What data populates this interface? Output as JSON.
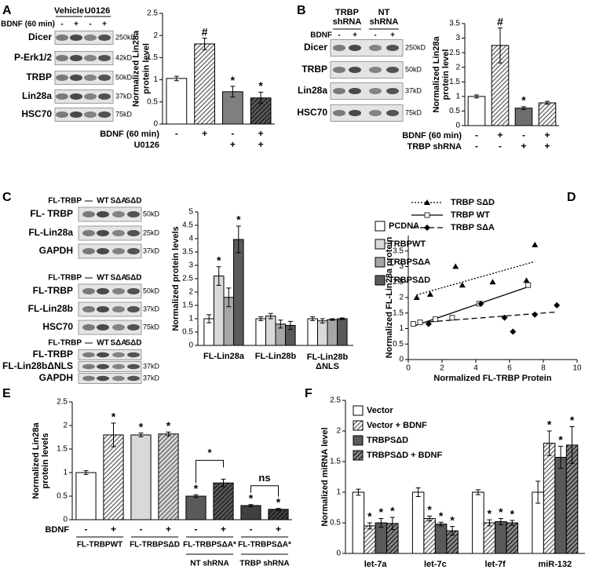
{
  "panel_labels": [
    "A",
    "B",
    "C",
    "D",
    "E",
    "F"
  ],
  "blots": [
    {
      "header_groups": [
        "Vehicle",
        "U0126"
      ],
      "sign_label": "BDNF (60 min)",
      "signs": [
        "-",
        "+",
        "-",
        "+"
      ],
      "rows": [
        {
          "label": "Dicer",
          "kd": "250kD"
        },
        {
          "label": "P-Erk1/2",
          "kd": "42kD"
        },
        {
          "label": "TRBP",
          "kd": "50kD"
        },
        {
          "label": "Lin28a",
          "kd": "37kD"
        },
        {
          "label": "HSC70",
          "kd": "75kD"
        }
      ]
    },
    {
      "header_groups": [
        "TRBP\nshRNA",
        "NT\nshRNA"
      ],
      "sign_label": "BDNF",
      "signs": [
        "-",
        "+",
        "-",
        "+"
      ],
      "rows": [
        {
          "label": "Dicer",
          "kd": "250kD"
        },
        {
          "label": "TRBP",
          "kd": "50kD"
        },
        {
          "label": "Lin28a",
          "kd": "37kD"
        },
        {
          "label": "HSC70",
          "kd": "75kD"
        }
      ]
    },
    {
      "sign_label": "FL-TRBP",
      "signs": [
        "—",
        "WT",
        "SΔA",
        "SΔD"
      ],
      "rows": [
        {
          "label": "FL- TRBP",
          "kd": "50kD"
        },
        {
          "label": "FL-Lin28a",
          "kd": "25kD"
        },
        {
          "label": "GAPDH",
          "kd": "37kD"
        }
      ]
    },
    {
      "sign_label": "FL-TRBP",
      "signs": [
        "—",
        "WT",
        "SΔA",
        "SΔD"
      ],
      "rows": [
        {
          "label": "FL-TRBP",
          "kd": "50kD"
        },
        {
          "label": "FL-Lin28b",
          "kd": "37kD"
        },
        {
          "label": "HSC70",
          "kd": "75kD"
        }
      ]
    },
    {
      "sign_label": "FL-TRBP",
      "signs": [
        "—",
        "WT",
        "SΔA",
        "SΔD"
      ],
      "rows": [
        {
          "label": "FL-TRBP"
        },
        {
          "label": "FL-Lin28bΔNLS",
          "kd": "37kD"
        },
        {
          "label": "GAPDH",
          "kd": "37kD"
        }
      ]
    }
  ],
  "chart_data": [
    {
      "type": "bar",
      "ylabel": "Normalized Lin28a\nprotein level",
      "values": [
        1.03,
        1.81,
        0.73,
        0.59
      ],
      "errors": [
        0.05,
        0.13,
        0.12,
        0.13
      ],
      "annotations": [
        null,
        "#",
        "*",
        "*"
      ],
      "colors": [
        "#ffffff",
        "#ffffff",
        "#7f7f7f",
        "#5a5a5a"
      ],
      "hatch": [
        false,
        true,
        false,
        true
      ],
      "conditions": [
        {
          "label": "BDNF (60 min)",
          "values": [
            "-",
            "+",
            "-",
            "+"
          ]
        },
        {
          "label": "U0126",
          "values": [
            null,
            null,
            "+",
            "+"
          ]
        }
      ],
      "ylim": [
        0,
        2.5
      ],
      "yticks": [
        0,
        0.5,
        1,
        1.5,
        2,
        2.5
      ]
    },
    {
      "type": "bar",
      "ylabel": "Normalized Lin28a\nprotein level",
      "values": [
        1.0,
        2.75,
        0.6,
        0.78
      ],
      "errors": [
        0.05,
        0.6,
        0.05,
        0.05
      ],
      "annotations": [
        null,
        "#",
        "*",
        null
      ],
      "colors": [
        "#ffffff",
        "#ffffff",
        "#6e6e6e",
        "#ffffff"
      ],
      "hatch": [
        false,
        true,
        false,
        true
      ],
      "conditions": [
        {
          "label": "BDNF (60 min)",
          "values": [
            "-",
            "+",
            "-",
            "+"
          ]
        },
        {
          "label": "TRBP shRNA",
          "values": [
            "-",
            "-",
            "+",
            "+"
          ]
        }
      ],
      "ylim": [
        0,
        3.5
      ],
      "yticks": [
        0,
        0.5,
        1,
        1.5,
        2,
        2.5,
        3,
        3.5
      ]
    },
    {
      "type": "grouped_bar",
      "ylabel": "Normalized protein levels",
      "legend": "right",
      "categories": [
        "FL-Lin28a",
        "FL-Lin28b",
        "FL-Lin28b\nΔNLS"
      ],
      "series": [
        {
          "name": "PCDNA",
          "color": "#ffffff",
          "hatch": false,
          "values": [
            1.0,
            1.0,
            1.0
          ],
          "errors": [
            0.15,
            0.07,
            0.07
          ],
          "annotations": [
            null,
            null,
            null
          ]
        },
        {
          "name": "TRBPWT",
          "color": "#d9d9d9",
          "hatch": false,
          "values": [
            2.6,
            1.1,
            0.92
          ],
          "errors": [
            0.35,
            0.1,
            0.08
          ],
          "annotations": [
            "*",
            null,
            null
          ]
        },
        {
          "name": "TRBPSΔA",
          "color": "#a6a6a6",
          "hatch": false,
          "values": [
            1.8,
            0.8,
            0.97
          ],
          "errors": [
            0.35,
            0.15,
            0.03
          ],
          "annotations": [
            null,
            null,
            null
          ]
        },
        {
          "name": "TRBPSΔD",
          "color": "#5a5a5a",
          "hatch": false,
          "values": [
            3.97,
            0.75,
            1.0
          ],
          "errors": [
            0.5,
            0.15,
            0.03
          ],
          "annotations": [
            "*",
            null,
            null
          ]
        }
      ],
      "ylim": [
        0,
        5
      ],
      "yticks": [
        0,
        0.5,
        1,
        1.5,
        2,
        2.5,
        3,
        3.5,
        4,
        4.5,
        5
      ]
    },
    {
      "type": "scatter",
      "ylabel": "Normalized FL-Lin28a protein",
      "xlabel": "Normalized FL-TRBP Protein",
      "legend": "top",
      "series": [
        {
          "name": "TRBP SΔD",
          "marker": "triangle",
          "line_style": "dotted",
          "x": [
            0.5,
            1.3,
            2.8,
            3.2,
            5.0,
            7.0,
            7.5
          ],
          "y": [
            2.0,
            2.1,
            3.0,
            2.4,
            2.5,
            2.55,
            3.7
          ]
        },
        {
          "name": "TRBP WT",
          "marker": "square",
          "line_style": "solid",
          "x": [
            0.3,
            0.7,
            1.6,
            2.6,
            4.2,
            7.1
          ],
          "y": [
            1.15,
            1.2,
            1.3,
            1.35,
            1.8,
            2.4
          ]
        },
        {
          "name": "TRBP SΔA",
          "marker": "diamond",
          "line_style": "dashed",
          "x": [
            1.2,
            4.3,
            5.7,
            6.2,
            7.5,
            8.8
          ],
          "y": [
            1.15,
            1.8,
            1.35,
            0.9,
            1.45,
            1.75
          ]
        }
      ],
      "xlim": [
        0,
        10
      ],
      "xticks": [
        0,
        2,
        4,
        6,
        8,
        10
      ],
      "ylim": [
        0,
        4
      ],
      "yticks": [
        0,
        0.5,
        1,
        1.5,
        2,
        2.5,
        3,
        3.5
      ]
    },
    {
      "type": "bar",
      "ylabel": "Normalized Lin28a\nprotein levels",
      "values": [
        1.0,
        1.8,
        1.8,
        1.82,
        0.5,
        0.78,
        0.3,
        0.22
      ],
      "errors": [
        0.04,
        0.25,
        0.04,
        0.04,
        0.03,
        0.08,
        0.02,
        0.02
      ],
      "annotations": [
        null,
        "*",
        "*",
        "*",
        "*",
        null,
        "*",
        "*"
      ],
      "colors": [
        "#ffffff",
        "#ffffff",
        "#d9d9d9",
        "#d9d9d9",
        "#5a5a5a",
        "#5a5a5a",
        "#404040",
        "#404040"
      ],
      "hatch": [
        false,
        true,
        false,
        true,
        false,
        true,
        false,
        true
      ],
      "conditions": [
        {
          "label": "BDNF",
          "values": [
            "-",
            "+",
            "-",
            "+",
            "-",
            "+",
            "-",
            "+"
          ]
        }
      ],
      "groups": [
        "FL-TRBPWT",
        "FL-TRBPSΔD",
        "FL-TRBPSΔA*",
        "FL-TRBPSΔA*"
      ],
      "subgroups": [
        "NT shRNA",
        "TRBP shRNA"
      ],
      "brackets": [
        "*",
        "ns"
      ],
      "ylim": [
        0,
        2.5
      ],
      "yticks": [
        0,
        0.5,
        1,
        1.5,
        2,
        2.5
      ]
    },
    {
      "type": "grouped_bar",
      "ylabel": "Normalized miRNA level",
      "legend": "upper left",
      "categories": [
        "let-7a",
        "let-7c",
        "let-7f",
        "miR-132"
      ],
      "series": [
        {
          "name": "Vector",
          "color": "#ffffff",
          "hatch": false,
          "values": [
            1.0,
            1.0,
            1.0,
            1.0
          ],
          "errors": [
            0.05,
            0.07,
            0.04,
            0.18
          ],
          "annotations": [
            null,
            null,
            null,
            null
          ]
        },
        {
          "name": "Vector + BDNF",
          "color": "#ffffff",
          "hatch": true,
          "values": [
            0.45,
            0.57,
            0.5,
            1.8
          ],
          "errors": [
            0.05,
            0.04,
            0.05,
            0.2
          ],
          "annotations": [
            "*",
            "*",
            "*",
            "*"
          ]
        },
        {
          "name": "TRBPSΔD",
          "color": "#5a5a5a",
          "hatch": false,
          "values": [
            0.5,
            0.48,
            0.52,
            1.57
          ],
          "errors": [
            0.07,
            0.03,
            0.05,
            0.18
          ],
          "annotations": [
            "*",
            "*",
            "*",
            "*"
          ]
        },
        {
          "name": "TRBPSΔD + BDNF",
          "color": "#8c8c8c",
          "hatch": true,
          "values": [
            0.49,
            0.37,
            0.5,
            1.77
          ],
          "errors": [
            0.1,
            0.07,
            0.04,
            0.3
          ],
          "annotations": [
            "*",
            "*",
            "*",
            "*"
          ]
        }
      ],
      "ylim": [
        0,
        2.5
      ],
      "yticks": [
        0,
        0.5,
        1,
        1.5,
        2,
        2.5
      ]
    }
  ]
}
